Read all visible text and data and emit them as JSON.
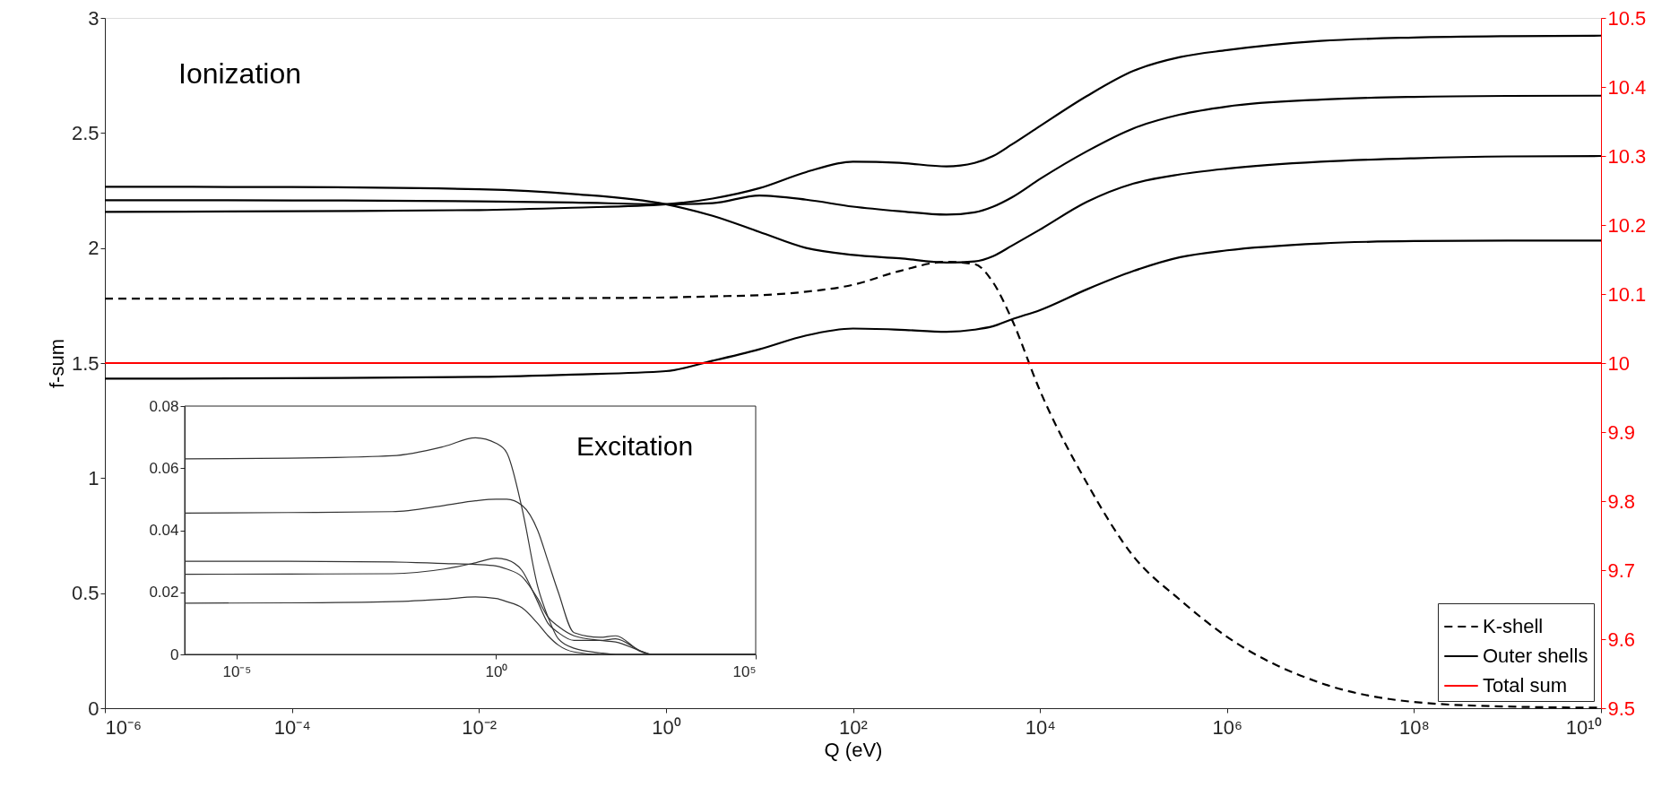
{
  "chart_data": [
    {
      "type": "line",
      "xlabel": "Q (eV)",
      "ylabel": "f-sum",
      "log": "x",
      "legend": "bottom right",
      "marker": "none",
      "annotations": [
        "Ionization"
      ],
      "xlim": [
        1e-06,
        10000000000.0
      ],
      "ylim": [
        0,
        3
      ],
      "y2lim": [
        9.5,
        10.5
      ],
      "xticks": [
        {
          "value": 1e-06,
          "label": "10⁻⁶"
        },
        {
          "value": 0.0001,
          "label": "10⁻⁴"
        },
        {
          "value": 0.01,
          "label": "10⁻²"
        },
        {
          "value": 1,
          "label": "10⁰"
        },
        {
          "value": 100.0,
          "label": "10²"
        },
        {
          "value": 10000.0,
          "label": "10⁴"
        },
        {
          "value": 1000000.0,
          "label": "10⁶"
        },
        {
          "value": 100000000.0,
          "label": "10⁸"
        },
        {
          "value": 10000000000.0,
          "label": "10¹⁰"
        }
      ],
      "yticks": [
        0,
        0.5,
        1,
        1.5,
        2,
        2.5,
        3
      ],
      "y2ticks": [
        9.5,
        9.6,
        9.7,
        9.8,
        9.9,
        10,
        10.1,
        10.2,
        10.3,
        10.4,
        10.5
      ],
      "x": [
        1e-06,
        0.0001,
        0.01,
        0.1,
        1,
        3.16,
        10,
        31.6,
        100,
        316,
        1000,
        2000,
        3160,
        5000,
        10000.0,
        31600.0,
        100000.0,
        316000.0,
        1000000.0,
        10000000.0,
        100000000.0,
        1000000000.0,
        10000000000.0
      ],
      "series": [
        {
          "name": "K-shell",
          "color": "#000000",
          "line_style": "dashed",
          "values": [
            1.78,
            1.78,
            1.78,
            1.782,
            1.785,
            1.79,
            1.795,
            1.81,
            1.84,
            1.9,
            1.94,
            1.93,
            1.85,
            1.69,
            1.38,
            0.98,
            0.66,
            0.47,
            0.31,
            0.11,
            0.027,
            0.007,
            0.002
          ]
        },
        {
          "name": "Outer shells",
          "color": "#000000",
          "line_style": "solid",
          "values": [
            2.157,
            2.16,
            2.165,
            2.175,
            2.19,
            2.215,
            2.26,
            2.33,
            2.375,
            2.37,
            2.355,
            2.37,
            2.4,
            2.45,
            2.53,
            2.66,
            2.77,
            2.83,
            2.86,
            2.9,
            2.915,
            2.921,
            2.923
          ]
        },
        {
          "color": "#000000",
          "line_style": "solid",
          "values": [
            2.208,
            2.207,
            2.203,
            2.198,
            2.19,
            2.195,
            2.228,
            2.21,
            2.18,
            2.16,
            2.145,
            2.155,
            2.18,
            2.22,
            2.3,
            2.42,
            2.52,
            2.58,
            2.615,
            2.645,
            2.657,
            2.661,
            2.662
          ]
        },
        {
          "color": "#000000",
          "line_style": "solid",
          "values": [
            2.266,
            2.265,
            2.255,
            2.235,
            2.19,
            2.14,
            2.07,
            2.0,
            1.97,
            1.955,
            1.937,
            1.942,
            1.965,
            2.01,
            2.08,
            2.2,
            2.28,
            2.32,
            2.345,
            2.375,
            2.39,
            2.398,
            2.4
          ]
        },
        {
          "color": "#000000",
          "line_style": "solid",
          "values": [
            1.432,
            1.434,
            1.44,
            1.45,
            1.465,
            1.51,
            1.56,
            1.62,
            1.65,
            1.645,
            1.636,
            1.645,
            1.66,
            1.69,
            1.73,
            1.82,
            1.9,
            1.96,
            1.99,
            2.02,
            2.03,
            2.032,
            2.032
          ]
        },
        {
          "name": "Total sum",
          "color": "#ff0000",
          "line_style": "solid",
          "axis": "y2",
          "values": [
            10,
            10,
            10,
            10,
            10,
            10,
            10,
            10,
            10,
            10,
            10,
            10,
            10,
            10,
            10,
            10,
            10,
            10,
            10,
            10,
            10,
            10,
            10
          ]
        }
      ]
    },
    {
      "type": "line",
      "log": "x",
      "marker": "none",
      "annotations": [
        "Excitation"
      ],
      "xlim": [
        1e-06,
        100000.0
      ],
      "ylim": [
        0,
        0.08
      ],
      "xticks": [
        {
          "value": 1e-05,
          "label": "10⁻⁵"
        },
        {
          "value": 1,
          "label": "10⁰"
        },
        {
          "value": 100000.0,
          "label": "10⁵"
        }
      ],
      "yticks": [
        0,
        0.02,
        0.04,
        0.06,
        0.08
      ],
      "x": [
        1e-06,
        0.0001,
        0.01,
        0.1,
        0.4,
        1,
        1.6,
        3.16,
        6.3,
        10,
        15.8,
        31.6,
        100,
        200,
        630,
        1000,
        10000.0,
        100000.0
      ],
      "series": [
        {
          "color": "#333333",
          "line_style": "solid",
          "values": [
            0.063,
            0.0632,
            0.064,
            0.067,
            0.0698,
            0.068,
            0.065,
            0.047,
            0.022,
            0.012,
            0.005,
            0.002,
            0.0005,
            0,
            0,
            0,
            0,
            0
          ]
        },
        {
          "color": "#333333",
          "line_style": "solid",
          "values": [
            0.0455,
            0.0457,
            0.046,
            0.048,
            0.0495,
            0.05,
            0.05,
            0.048,
            0.04,
            0.03,
            0.02,
            0.007,
            0.0055,
            0.006,
            0.0008,
            0,
            0,
            0
          ]
        },
        {
          "color": "#333333",
          "line_style": "solid",
          "values": [
            0.03,
            0.03,
            0.0298,
            0.0293,
            0.029,
            0.0285,
            0.0275,
            0.025,
            0.018,
            0.012,
            0.009,
            0.006,
            0.0045,
            0.004,
            0.001,
            0,
            0,
            0
          ]
        },
        {
          "color": "#333333",
          "line_style": "solid",
          "values": [
            0.0258,
            0.0259,
            0.026,
            0.0275,
            0.0295,
            0.031,
            0.0305,
            0.027,
            0.017,
            0.01,
            0.007,
            0.0045,
            0.0045,
            0.005,
            0.001,
            0,
            0,
            0
          ]
        },
        {
          "color": "#333333",
          "line_style": "solid",
          "values": [
            0.0165,
            0.0166,
            0.017,
            0.0178,
            0.0185,
            0.018,
            0.017,
            0.015,
            0.01,
            0.006,
            0.003,
            0.0008,
            0,
            0,
            0,
            0,
            0,
            0
          ]
        }
      ]
    }
  ]
}
